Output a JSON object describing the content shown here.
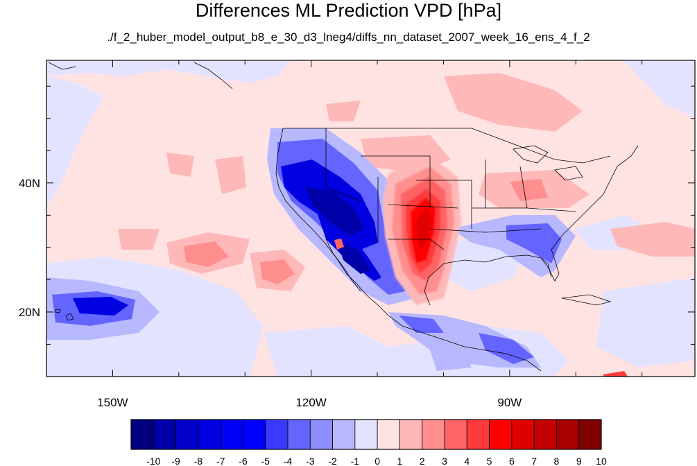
{
  "title": "Differences ML Prediction VPD [hPa]",
  "subtitle": "./f_2_huber_model_output_b8_e_30_d3_lneg4/diffs_nn_dataset_2007_week_16_ens_4_f_2",
  "axes": {
    "lon_range": [
      -160,
      -62
    ],
    "lat_range": [
      10,
      59
    ],
    "lon_ticks": [
      {
        "value": -150,
        "label": "150W"
      },
      {
        "value": -120,
        "label": "120W"
      },
      {
        "value": -90,
        "label": "90W"
      }
    ],
    "lat_ticks": [
      {
        "value": 40,
        "label": "40N"
      },
      {
        "value": 20,
        "label": "20N"
      }
    ]
  },
  "colorbar": {
    "labels": [
      "-10",
      "-9",
      "-8",
      "-7",
      "-6",
      "-5",
      "-4",
      "-3",
      "-2",
      "-1",
      "0",
      "1",
      "2",
      "3",
      "4",
      "5",
      "6",
      "7",
      "8",
      "9",
      "10"
    ],
    "colors": [
      "#00007f",
      "#0000a8",
      "#0000c8",
      "#0000e0",
      "#0000f4",
      "#0000ff",
      "#3a3aff",
      "#6464ff",
      "#8e8eff",
      "#b8b8ff",
      "#e3e3ff",
      "#ffe3e3",
      "#ffb8b8",
      "#ff8e8e",
      "#ff6464",
      "#ff3a3a",
      "#ff0000",
      "#e00000",
      "#c40000",
      "#a80000",
      "#7f0000"
    ]
  },
  "field_colors": {
    "ocean_base": "#ffe3e3",
    "strong_blue": "#0000e0",
    "strong_red": "#ff0000"
  }
}
